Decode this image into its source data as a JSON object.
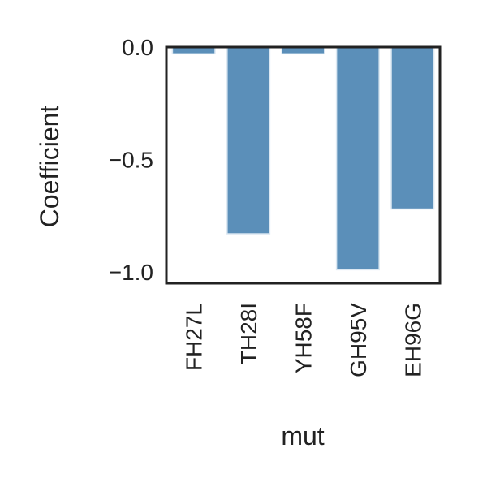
{
  "chart_data": {
    "type": "bar",
    "categories": [
      "FH27L",
      "TH28I",
      "YH58F",
      "GH95V",
      "EH96G"
    ],
    "values": [
      -0.03,
      -0.83,
      -0.03,
      -0.99,
      -0.72
    ],
    "xlabel": "mut",
    "ylabel": "Coefficient",
    "ylim": [
      -1.05,
      0.0
    ],
    "yticks": [
      0.0,
      -0.5,
      -1.0
    ],
    "ytick_labels": [
      "0.0",
      "−0.5",
      "−1.0"
    ],
    "bar_color": "#5b8fb9",
    "bar_edge_color": "#dce8f2",
    "grid": false
  }
}
